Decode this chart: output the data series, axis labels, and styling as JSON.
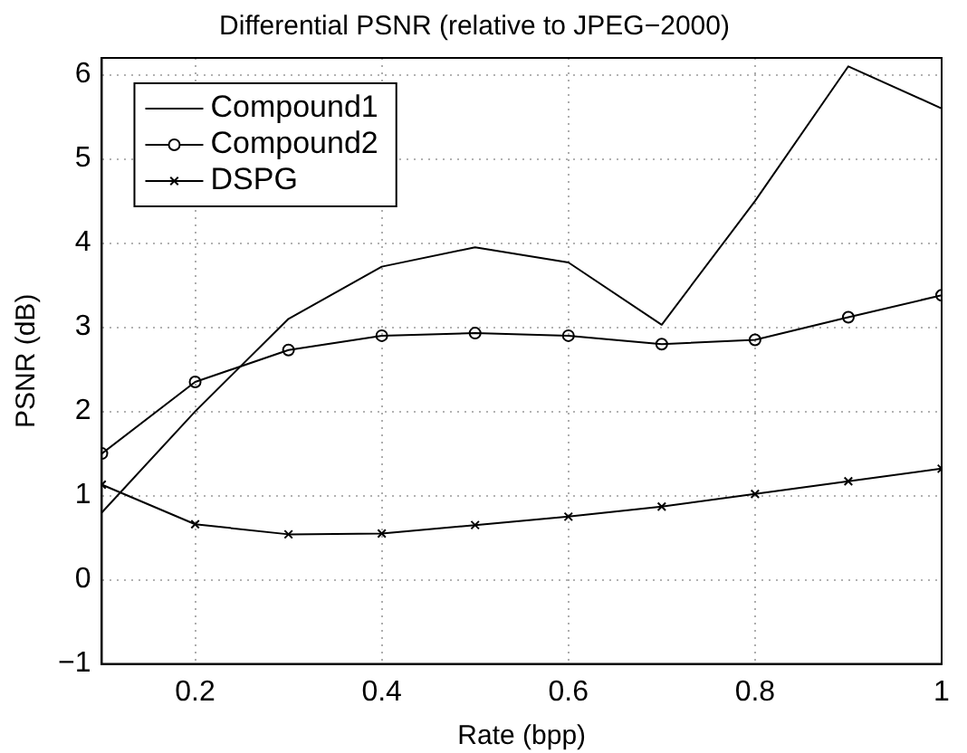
{
  "chart_data": {
    "type": "line",
    "title": "Differential PSNR (relative to JPEG−2000)",
    "xlabel": "Rate (bpp)",
    "ylabel": "PSNR (dB)",
    "x": [
      0.1,
      0.2,
      0.3,
      0.4,
      0.5,
      0.6,
      0.7,
      0.8,
      0.9,
      1.0
    ],
    "series": [
      {
        "name": "Compound1",
        "color": "#000000",
        "marker": "none",
        "values": [
          0.8,
          2.0,
          3.1,
          3.72,
          3.95,
          3.77,
          3.03,
          4.5,
          6.1,
          5.6
        ]
      },
      {
        "name": "Compound2",
        "color": "#000000",
        "marker": "circle",
        "values": [
          1.5,
          2.35,
          2.73,
          2.9,
          2.93,
          2.9,
          2.8,
          2.85,
          3.12,
          3.38
        ]
      },
      {
        "name": "DSPG",
        "color": "#000000",
        "marker": "cross",
        "values": [
          1.13,
          0.66,
          0.54,
          0.55,
          0.65,
          0.75,
          0.87,
          1.02,
          1.17,
          1.32
        ]
      }
    ],
    "xlim": [
      0.1,
      1.0
    ],
    "xticks": [
      0.2,
      0.4,
      0.6,
      0.8,
      1
    ],
    "ylim": [
      -1,
      6.2
    ],
    "yticks": [
      -1,
      0,
      1,
      2,
      3,
      4,
      5,
      6
    ],
    "grid": true,
    "legend": "top left",
    "line_style": "solid"
  }
}
